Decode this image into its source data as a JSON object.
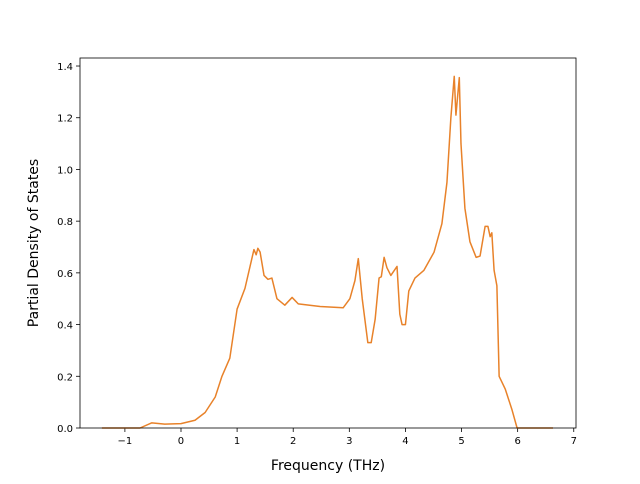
{
  "chart_data": {
    "type": "line",
    "xlabel": "Frequency (THz)",
    "ylabel": "Partial Density of States",
    "x": [
      -1.41,
      -0.73,
      -0.52,
      -0.29,
      0,
      0.25,
      0.43,
      0.61,
      0.73,
      0.87,
      1.0,
      1.14,
      1.3,
      1.34,
      1.37,
      1.41,
      1.48,
      1.55,
      1.62,
      1.71,
      1.85,
      1.98,
      2.09,
      2.48,
      2.89,
      3.01,
      3.1,
      3.16,
      3.23,
      3.33,
      3.39,
      3.46,
      3.53,
      3.57,
      3.62,
      3.67,
      3.74,
      3.85,
      3.9,
      3.94,
      4.0,
      4.06,
      4.17,
      4.33,
      4.51,
      4.65,
      4.74,
      4.81,
      4.87,
      4.9,
      4.96,
      4.99,
      5.06,
      5.15,
      5.26,
      5.33,
      5.42,
      5.47,
      5.51,
      5.54,
      5.58,
      5.63,
      5.67,
      5.78,
      5.9,
      5.99,
      6.63
    ],
    "series": [
      {
        "color": "#e8822a",
        "values": [
          0,
          0,
          0.02,
          0.015,
          0.017,
          0.03,
          0.06,
          0.12,
          0.2,
          0.27,
          0.46,
          0.54,
          0.69,
          0.67,
          0.695,
          0.68,
          0.59,
          0.575,
          0.58,
          0.5,
          0.475,
          0.505,
          0.48,
          0.47,
          0.465,
          0.5,
          0.57,
          0.655,
          0.5,
          0.33,
          0.33,
          0.42,
          0.58,
          0.585,
          0.66,
          0.62,
          0.59,
          0.625,
          0.44,
          0.4,
          0.4,
          0.53,
          0.58,
          0.61,
          0.68,
          0.79,
          0.95,
          1.2,
          1.36,
          1.21,
          1.355,
          1.1,
          0.85,
          0.72,
          0.66,
          0.665,
          0.78,
          0.78,
          0.74,
          0.755,
          0.61,
          0.55,
          0.2,
          0.15,
          0.07,
          0,
          0
        ]
      }
    ],
    "xlim": [
      -1.8,
      7.04
    ],
    "ylim": [
      0,
      1.431
    ],
    "xticks": [
      {
        "value": -1,
        "label": "−1"
      },
      0,
      1,
      2,
      3,
      4,
      5,
      6,
      7
    ],
    "yticks": [
      {
        "value": 0,
        "label": "0.0"
      },
      {
        "value": 0.2,
        "label": "0.2"
      },
      {
        "value": 0.4,
        "label": "0.4"
      },
      {
        "value": 0.6,
        "label": "0.6"
      },
      {
        "value": 0.8,
        "label": "0.8"
      },
      {
        "value": 1,
        "label": "1.0"
      },
      {
        "value": 1.2,
        "label": "1.2"
      },
      {
        "value": 1.4,
        "label": "1.4"
      }
    ]
  }
}
